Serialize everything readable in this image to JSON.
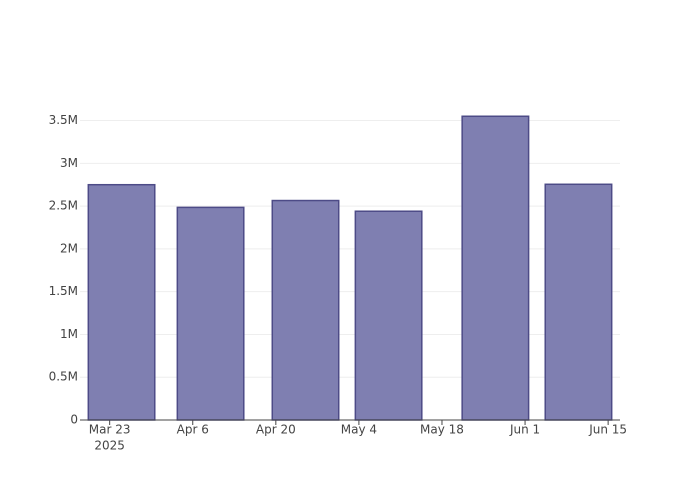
{
  "chart_data": {
    "type": "bar",
    "x": [
      "2025-03-25",
      "2025-04-09",
      "2025-04-25",
      "2025-05-09",
      "2025-05-27",
      "2025-06-10"
    ],
    "values": [
      2750000,
      2485000,
      2565000,
      2440000,
      3550000,
      2755000
    ],
    "color": "#7f7fb1",
    "edge_color": "#4d4b87",
    "xlim": [
      "2025-03-18",
      "2025-06-17"
    ],
    "xticks": [
      {
        "value": "2025-03-23",
        "label": "Mar 23"
      },
      {
        "value": "2025-04-06",
        "label": "Apr 6"
      },
      {
        "value": "2025-04-20",
        "label": "Apr 20"
      },
      {
        "value": "2025-05-04",
        "label": "May 4"
      },
      {
        "value": "2025-05-18",
        "label": "May 18"
      },
      {
        "value": "2025-06-01",
        "label": "Jun 1"
      },
      {
        "value": "2025-06-15",
        "label": "Jun 15"
      }
    ],
    "x_year_label": "2025",
    "ylim": [
      0,
      3740000
    ],
    "yticks": [
      0,
      {
        "value": 500000,
        "label": "0.5M"
      },
      {
        "value": 1000000,
        "label": "1M"
      },
      {
        "value": 1500000,
        "label": "1.5M"
      },
      {
        "value": 2000000,
        "label": "2M"
      },
      {
        "value": 2500000,
        "label": "2.5M"
      },
      {
        "value": 3000000,
        "label": "3M"
      },
      {
        "value": 3500000,
        "label": "3.5M"
      }
    ],
    "grid": true
  }
}
